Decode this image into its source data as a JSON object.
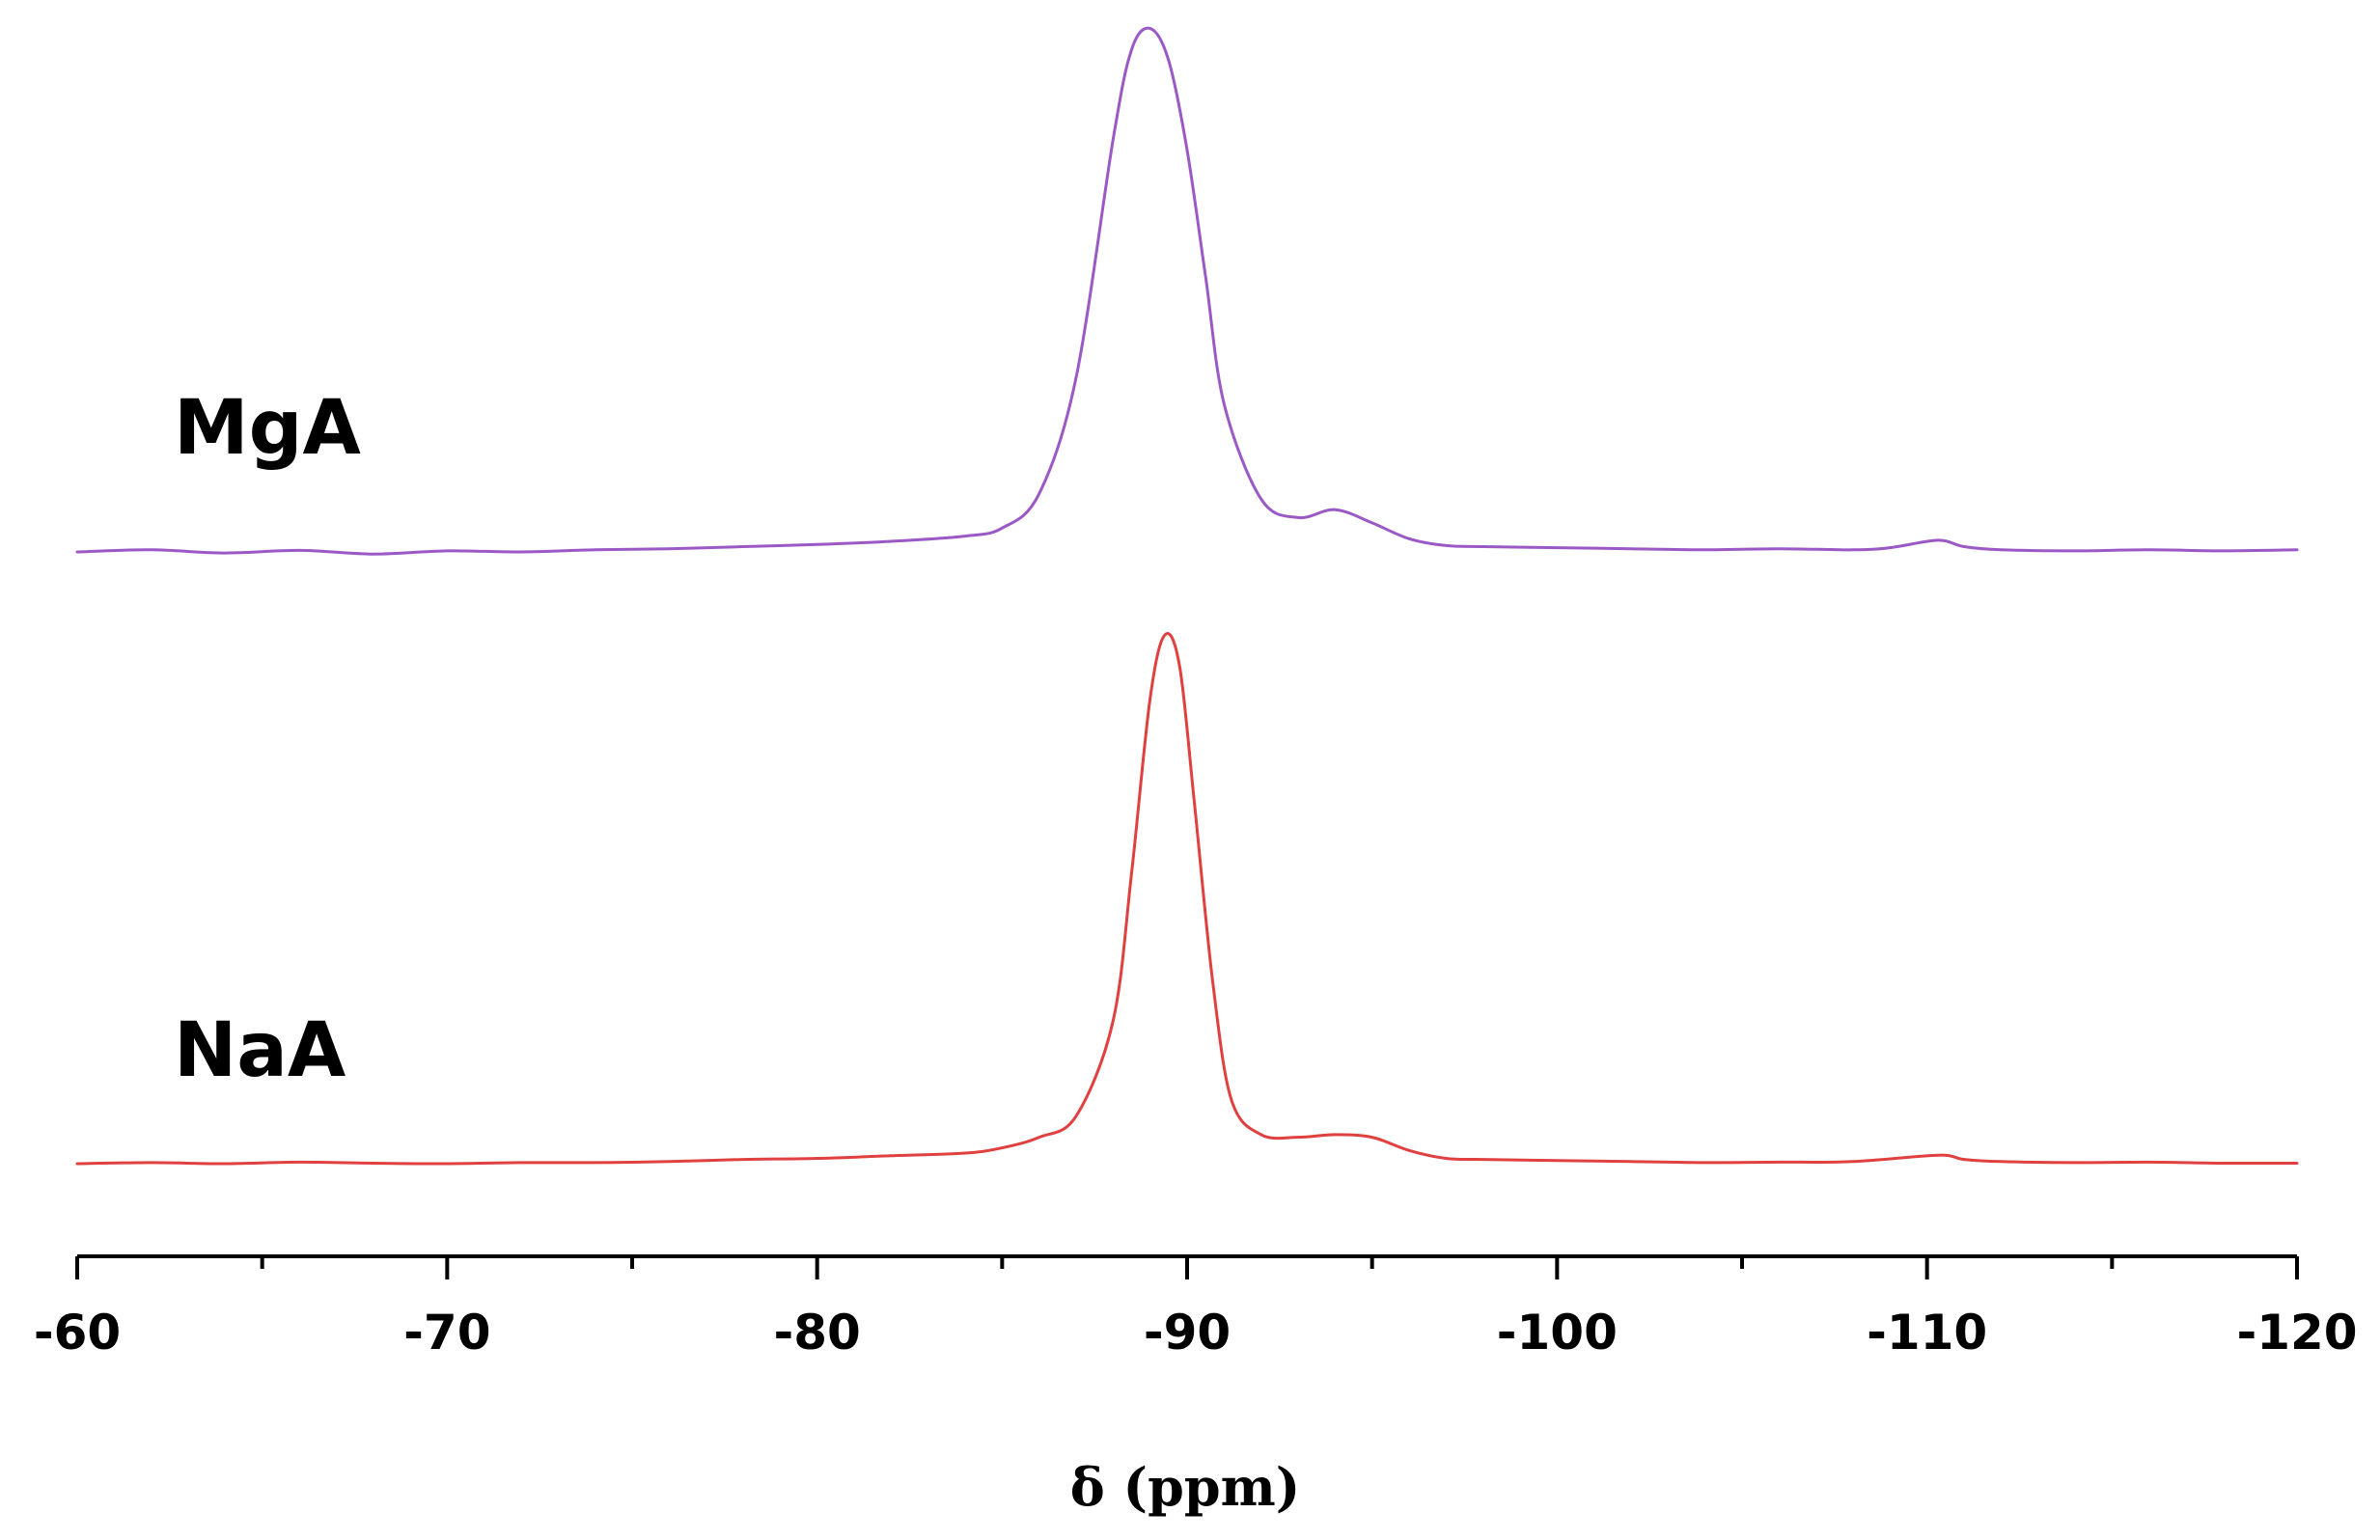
{
  "chart_data": {
    "type": "line",
    "title": "",
    "xlabel": "δ (ppm)",
    "ylabel": "",
    "xlim": [
      -60,
      -120
    ],
    "xticks": [
      -60,
      -70,
      -80,
      -90,
      -100,
      -110,
      -120
    ],
    "minor_tick_step": 5,
    "grid": false,
    "legend": "none",
    "y_units": "relative intensity (0-1), stacked traces",
    "series": [
      {
        "name": "MgA",
        "color": "#9b59c6",
        "points": [
          [
            -60,
            0.0
          ],
          [
            -62,
            0.004
          ],
          [
            -64,
            -0.002
          ],
          [
            -66,
            0.003
          ],
          [
            -68,
            -0.004
          ],
          [
            -70,
            0.002
          ],
          [
            -72,
            0.0
          ],
          [
            -74,
            0.004
          ],
          [
            -76,
            0.006
          ],
          [
            -78,
            0.01
          ],
          [
            -80,
            0.014
          ],
          [
            -82,
            0.02
          ],
          [
            -84,
            0.03
          ],
          [
            -85,
            0.045
          ],
          [
            -86,
            0.11
          ],
          [
            -87,
            0.33
          ],
          [
            -88,
            0.78
          ],
          [
            -88.5,
            0.95
          ],
          [
            -89,
            0.99
          ],
          [
            -89.5,
            0.93
          ],
          [
            -90,
            0.76
          ],
          [
            -90.5,
            0.52
          ],
          [
            -91,
            0.28
          ],
          [
            -92,
            0.1
          ],
          [
            -93,
            0.065
          ],
          [
            -94,
            0.08
          ],
          [
            -95,
            0.055
          ],
          [
            -96,
            0.025
          ],
          [
            -97,
            0.012
          ],
          [
            -98,
            0.01
          ],
          [
            -100,
            0.008
          ],
          [
            -102,
            0.006
          ],
          [
            -104,
            0.004
          ],
          [
            -106,
            0.006
          ],
          [
            -108,
            0.004
          ],
          [
            -109,
            0.008
          ],
          [
            -110.3,
            0.022
          ],
          [
            -111,
            0.01
          ],
          [
            -112,
            0.004
          ],
          [
            -114,
            0.002
          ],
          [
            -116,
            0.004
          ],
          [
            -118,
            0.002
          ],
          [
            -120,
            0.004
          ]
        ]
      },
      {
        "name": "NaA",
        "color": "#e04040",
        "points": [
          [
            -60,
            0.0
          ],
          [
            -62,
            0.002
          ],
          [
            -64,
            0.0
          ],
          [
            -66,
            0.003
          ],
          [
            -68,
            0.001
          ],
          [
            -70,
            0.0
          ],
          [
            -72,
            0.002
          ],
          [
            -74,
            0.002
          ],
          [
            -76,
            0.004
          ],
          [
            -78,
            0.008
          ],
          [
            -80,
            0.01
          ],
          [
            -82,
            0.015
          ],
          [
            -84,
            0.02
          ],
          [
            -85,
            0.03
          ],
          [
            -86,
            0.05
          ],
          [
            -87,
            0.09
          ],
          [
            -88,
            0.27
          ],
          [
            -88.5,
            0.55
          ],
          [
            -89,
            0.88
          ],
          [
            -89.4,
            1.0
          ],
          [
            -89.8,
            0.94
          ],
          [
            -90.2,
            0.68
          ],
          [
            -90.7,
            0.34
          ],
          [
            -91.2,
            0.12
          ],
          [
            -92,
            0.055
          ],
          [
            -93,
            0.05
          ],
          [
            -94,
            0.055
          ],
          [
            -95,
            0.05
          ],
          [
            -96,
            0.025
          ],
          [
            -97,
            0.01
          ],
          [
            -98,
            0.008
          ],
          [
            -100,
            0.006
          ],
          [
            -102,
            0.004
          ],
          [
            -104,
            0.002
          ],
          [
            -106,
            0.003
          ],
          [
            -108,
            0.004
          ],
          [
            -110.3,
            0.016
          ],
          [
            -111,
            0.008
          ],
          [
            -112,
            0.004
          ],
          [
            -114,
            0.002
          ],
          [
            -116,
            0.003
          ],
          [
            -118,
            0.001
          ],
          [
            -120,
            0.001
          ]
        ]
      }
    ]
  }
}
